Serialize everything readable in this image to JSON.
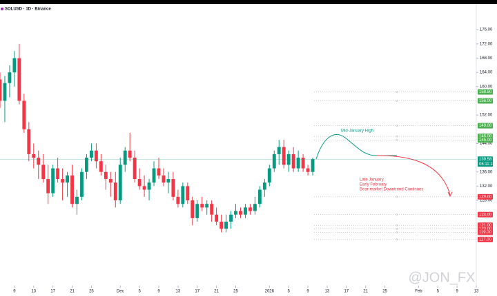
{
  "chart_data": {
    "type": "candlestick",
    "title": "SOLUSD · 1D · Binance",
    "x": [
      5,
      6,
      7,
      8,
      9,
      10,
      11,
      12,
      13,
      14,
      15,
      16,
      17,
      18,
      19,
      20,
      21,
      22,
      23,
      24,
      25,
      26,
      27,
      28,
      29,
      30,
      31,
      32,
      33,
      34,
      35,
      36,
      37,
      38,
      39,
      40,
      41,
      42,
      43,
      44,
      45,
      46,
      47,
      48,
      49,
      50,
      51,
      52,
      53,
      54,
      55,
      56,
      57,
      58,
      59,
      60,
      61,
      62,
      63,
      64,
      65,
      66,
      67,
      68,
      69,
      70
    ],
    "open": [
      162,
      156,
      161,
      164,
      168,
      156,
      148,
      141,
      140,
      138,
      134,
      130,
      137,
      134,
      133,
      135,
      127,
      129,
      136,
      140,
      142,
      139,
      136,
      134,
      133,
      128,
      138,
      142,
      140,
      134,
      132,
      131,
      133,
      137,
      135,
      133,
      134,
      129,
      127,
      132,
      128,
      123,
      127,
      126,
      127,
      124,
      122,
      120,
      122,
      124,
      125,
      124,
      126,
      125,
      127,
      131,
      133,
      137,
      141,
      143,
      138,
      141,
      137,
      140,
      137,
      136
    ],
    "high": [
      164,
      163,
      166,
      170,
      172,
      158,
      150,
      144,
      142,
      141,
      138,
      138,
      140,
      137,
      136,
      138,
      131,
      137,
      141,
      144,
      144,
      141,
      138,
      136,
      136,
      140,
      143,
      147,
      142,
      137,
      135,
      134,
      139,
      140,
      137,
      136,
      136,
      131,
      133,
      133,
      129,
      128,
      129,
      128,
      128,
      126,
      124,
      124,
      125,
      127,
      126,
      127,
      127,
      129,
      132,
      134,
      138,
      142,
      145,
      145,
      142,
      143,
      142,
      141,
      138,
      140
    ],
    "low": [
      154,
      150,
      157,
      160,
      155,
      147,
      139,
      137,
      134,
      133,
      127,
      129,
      133,
      128,
      129,
      126,
      124,
      128,
      134,
      139,
      137,
      135,
      131,
      129,
      126,
      127,
      136,
      139,
      133,
      131,
      129,
      128,
      132,
      134,
      132,
      130,
      128,
      126,
      126,
      127,
      121,
      122,
      125,
      124,
      122,
      121,
      119,
      119,
      120,
      123,
      123,
      123,
      124,
      124,
      126,
      129,
      132,
      136,
      138,
      137,
      136,
      136,
      136,
      136,
      135,
      135
    ],
    "close": [
      156,
      161,
      164,
      168,
      156,
      148,
      141,
      140,
      138,
      134,
      130,
      137,
      134,
      133,
      135,
      127,
      129,
      136,
      140,
      142,
      139,
      136,
      134,
      133,
      128,
      138,
      142,
      140,
      134,
      132,
      131,
      133,
      137,
      135,
      133,
      134,
      129,
      127,
      132,
      128,
      123,
      127,
      126,
      127,
      124,
      122,
      120,
      122,
      124,
      125,
      124,
      126,
      125,
      127,
      131,
      133,
      137,
      141,
      143,
      138,
      141,
      137,
      140,
      137,
      136,
      139.58
    ],
    "up_color": "#089981",
    "down_color": "#f23645",
    "xlim": [
      5,
      104
    ],
    "xticks": [
      {
        "value": 8,
        "label": "9"
      },
      {
        "value": 12,
        "label": "13"
      },
      {
        "value": 16,
        "label": "17"
      },
      {
        "value": 20,
        "label": "21"
      },
      {
        "value": 24,
        "label": "25"
      },
      {
        "value": 30,
        "label": "Dec"
      },
      {
        "value": 34,
        "label": "5"
      },
      {
        "value": 38,
        "label": "9"
      },
      {
        "value": 42,
        "label": "13"
      },
      {
        "value": 46,
        "label": "17"
      },
      {
        "value": 50,
        "label": "21"
      },
      {
        "value": 54,
        "label": "25"
      },
      {
        "value": 61,
        "label": "2026"
      },
      {
        "value": 65,
        "label": "5"
      },
      {
        "value": 69,
        "label": "9"
      },
      {
        "value": 73,
        "label": "13"
      },
      {
        "value": 77,
        "label": "17"
      },
      {
        "value": 81,
        "label": "21"
      },
      {
        "value": 85,
        "label": "25"
      },
      {
        "value": 92,
        "label": "Feb"
      },
      {
        "value": 96,
        "label": "5"
      },
      {
        "value": 100,
        "label": "9"
      },
      {
        "value": 104,
        "label": "13"
      }
    ],
    "ylim": [
      104,
      183
    ],
    "yticks": [
      {
        "value": 176,
        "label": "176.00"
      },
      {
        "value": 172,
        "label": "172.00"
      },
      {
        "value": 168,
        "label": "168.00"
      },
      {
        "value": 164,
        "label": "164.00"
      },
      {
        "value": 160,
        "label": "160.00"
      },
      {
        "value": 152,
        "label": "152.00"
      },
      {
        "value": 144,
        "label": "144.00"
      },
      {
        "value": 136,
        "label": "136.00"
      },
      {
        "value": 132,
        "label": "132.00"
      },
      {
        "value": 128,
        "label": "128.00"
      }
    ],
    "levels": [
      {
        "value": 158.5,
        "label": "158.50",
        "color": "#4caf50"
      },
      {
        "value": 156,
        "label": "156.00",
        "color": "#4caf50"
      },
      {
        "value": 149,
        "label": "149.00",
        "color": "#4caf50"
      },
      {
        "value": 146,
        "label": "146.00",
        "color": "#4caf50"
      },
      {
        "value": 145,
        "label": "145.00",
        "color": "#4caf50"
      },
      {
        "value": 129,
        "label": "129.00",
        "color": "#f23645"
      },
      {
        "value": 124,
        "label": "124.00",
        "color": "#f23645"
      },
      {
        "value": 121,
        "label": "121.00",
        "color": "#f23645"
      },
      {
        "value": 120,
        "label": "120.00",
        "color": "#f23645"
      },
      {
        "value": 119,
        "label": "119.00",
        "color": "#f23645"
      },
      {
        "value": 117,
        "label": "117.00",
        "color": "#f23645"
      }
    ],
    "current_price": 139.58,
    "countdown": "06:11:10",
    "annotations": {
      "high": "Mid-January High",
      "low": [
        "Late January",
        "Early February",
        "Bear-market Downtrend Continues"
      ]
    },
    "watermark": "@JON_FX"
  }
}
